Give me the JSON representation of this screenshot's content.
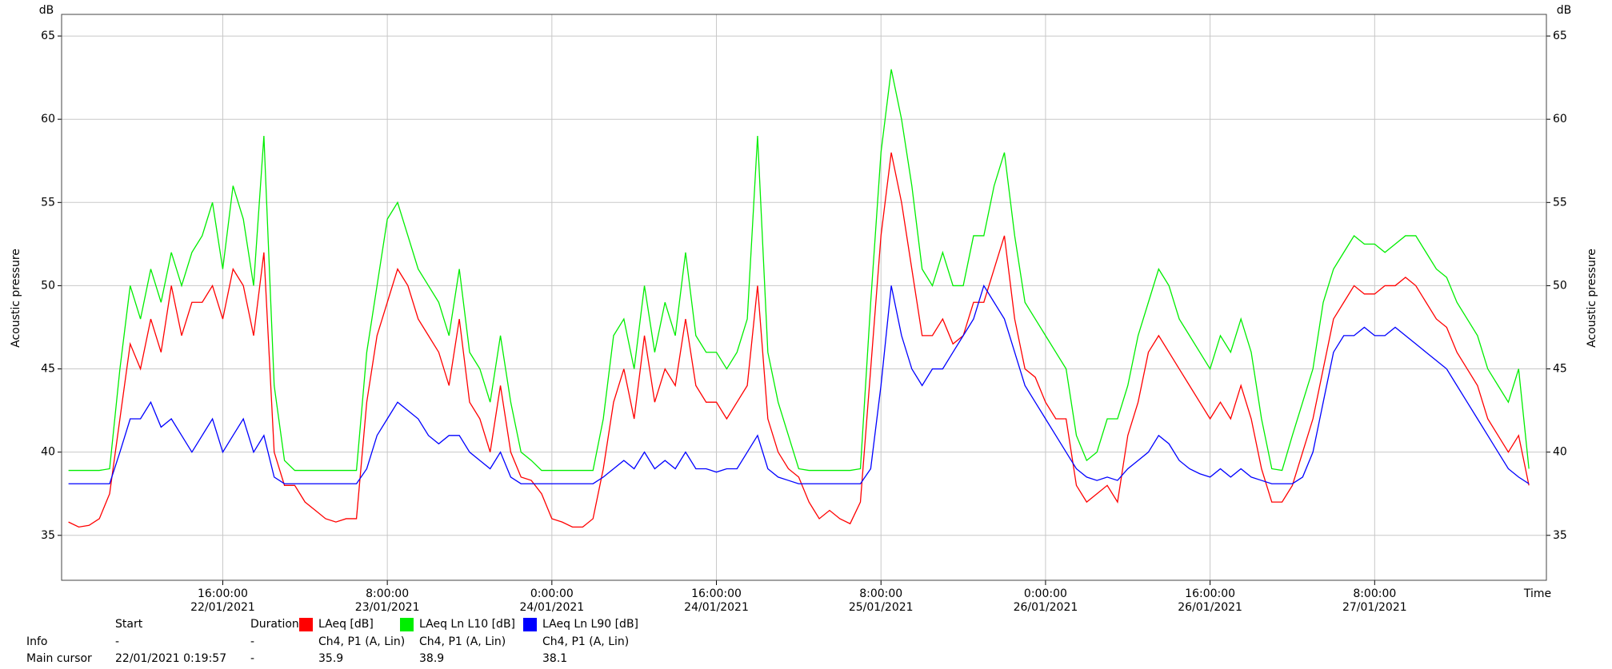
{
  "chart_data": {
    "type": "line",
    "ylabel": "Acoustic pressure",
    "yunit": "dB",
    "xlabel": "Time",
    "x": [
      1,
      2,
      3,
      4,
      5,
      6,
      7,
      8,
      9,
      10,
      11,
      12,
      13,
      14,
      15,
      16,
      17,
      18,
      19,
      20,
      21,
      22,
      23,
      24,
      25,
      26,
      27,
      28,
      29,
      30,
      31,
      32,
      33,
      34,
      35,
      36,
      37,
      38,
      39,
      40,
      41,
      42,
      43,
      44,
      45,
      46,
      47,
      48,
      49,
      50,
      51,
      52,
      53,
      54,
      55,
      56,
      57,
      58,
      59,
      60,
      61,
      62,
      63,
      64,
      65,
      66,
      67,
      68,
      69,
      70,
      71,
      72,
      73,
      74,
      75,
      76,
      77,
      78,
      79,
      80,
      81,
      82,
      83,
      84,
      85,
      86,
      87,
      88,
      89,
      90,
      91,
      92,
      93,
      94,
      95,
      96,
      97,
      98,
      99,
      100,
      101,
      102,
      103,
      104,
      105,
      106,
      107,
      108,
      109,
      110,
      111,
      112,
      113,
      114,
      115,
      116,
      117,
      118,
      119,
      120,
      121,
      122,
      123,
      124,
      125,
      126,
      127,
      128,
      129,
      130,
      131,
      132,
      133,
      134,
      135,
      136,
      137,
      138,
      139,
      140,
      141,
      142,
      143
    ],
    "series": [
      {
        "name": "LAeq [dB]",
        "color": "#ff0000",
        "values": [
          35.8,
          35.5,
          35.6,
          36,
          37.5,
          42,
          46.5,
          45,
          48,
          46,
          50,
          47,
          49,
          49,
          50,
          48,
          51,
          50,
          47,
          52,
          40,
          38,
          38,
          37,
          36.5,
          36,
          35.8,
          36,
          36,
          43,
          47,
          49,
          51,
          50,
          48,
          47,
          46,
          44,
          48,
          43,
          42,
          40,
          44,
          40,
          38.5,
          38.3,
          37.5,
          36,
          35.8,
          35.5,
          35.5,
          36,
          39,
          43,
          45,
          42,
          47,
          43,
          45,
          44,
          48,
          44,
          43,
          43,
          42,
          43,
          44,
          50,
          42,
          40,
          39,
          38.5,
          37,
          36,
          36.5,
          36,
          35.7,
          37,
          45,
          53,
          58,
          55,
          51,
          47,
          47,
          48,
          46.5,
          47,
          49,
          49,
          51,
          53,
          48,
          45,
          44.5,
          43,
          42,
          42,
          38,
          37,
          37.5,
          38,
          37,
          41,
          43,
          46,
          47,
          46,
          45,
          44,
          43,
          42,
          43,
          42,
          44,
          42,
          39,
          37,
          37,
          38,
          40,
          42,
          45,
          48,
          49,
          50,
          49.5,
          49.5,
          50,
          50,
          50.5,
          50,
          49,
          48,
          47.5,
          46,
          45,
          44,
          42,
          41,
          40,
          41,
          38
        ]
      },
      {
        "name": "LAeq Ln L10 [dB]",
        "color": "#00ee00",
        "values": [
          38.9,
          38.9,
          38.9,
          38.9,
          39,
          45,
          50,
          48,
          51,
          49,
          52,
          50,
          52,
          53,
          55,
          51,
          56,
          54,
          50,
          59,
          44,
          39.5,
          38.9,
          38.9,
          38.9,
          38.9,
          38.9,
          38.9,
          38.9,
          46,
          50,
          54,
          55,
          53,
          51,
          50,
          49,
          47,
          51,
          46,
          45,
          43,
          47,
          43,
          40,
          39.5,
          38.9,
          38.9,
          38.9,
          38.9,
          38.9,
          38.9,
          42,
          47,
          48,
          45,
          50,
          46,
          49,
          47,
          52,
          47,
          46,
          46,
          45,
          46,
          48,
          59,
          46,
          43,
          41,
          39,
          38.9,
          38.9,
          38.9,
          38.9,
          38.9,
          39,
          49,
          58,
          63,
          60,
          56,
          51,
          50,
          52,
          50,
          50,
          53,
          53,
          56,
          58,
          53,
          49,
          48,
          47,
          46,
          45,
          41,
          39.5,
          40,
          42,
          42,
          44,
          47,
          49,
          51,
          50,
          48,
          47,
          46,
          45,
          47,
          46,
          48,
          46,
          42,
          39,
          38.9,
          41,
          43,
          45,
          49,
          51,
          52,
          53,
          52.5,
          52.5,
          52,
          52.5,
          53,
          53,
          52,
          51,
          50.5,
          49,
          48,
          47,
          45,
          44,
          43,
          45,
          39
        ]
      },
      {
        "name": "LAeq Ln L90 [dB]",
        "color": "#0000ff",
        "values": [
          38.1,
          38.1,
          38.1,
          38.1,
          38.1,
          40,
          42,
          42,
          43,
          41.5,
          42,
          41,
          40,
          41,
          42,
          40,
          41,
          42,
          40,
          41,
          38.5,
          38.1,
          38.1,
          38.1,
          38.1,
          38.1,
          38.1,
          38.1,
          38.1,
          39,
          41,
          42,
          43,
          42.5,
          42,
          41,
          40.5,
          41,
          41,
          40,
          39.5,
          39,
          40,
          38.5,
          38.1,
          38.1,
          38.1,
          38.1,
          38.1,
          38.1,
          38.1,
          38.1,
          38.5,
          39,
          39.5,
          39,
          40,
          39,
          39.5,
          39,
          40,
          39,
          39,
          38.8,
          39,
          39,
          40,
          41,
          39,
          38.5,
          38.3,
          38.1,
          38.1,
          38.1,
          38.1,
          38.1,
          38.1,
          38.1,
          39,
          44,
          50,
          47,
          45,
          44,
          45,
          45,
          46,
          47,
          48,
          50,
          49,
          48,
          46,
          44,
          43,
          42,
          41,
          40,
          39,
          38.5,
          38.3,
          38.5,
          38.3,
          39,
          39.5,
          40,
          41,
          40.5,
          39.5,
          39,
          38.7,
          38.5,
          39,
          38.5,
          39,
          38.5,
          38.3,
          38.1,
          38.1,
          38.1,
          38.5,
          40,
          43,
          46,
          47,
          47,
          47.5,
          47,
          47,
          47.5,
          47,
          46.5,
          46,
          45.5,
          45,
          44,
          43,
          42,
          41,
          40,
          39,
          38.5,
          38.1
        ]
      }
    ],
    "xlim": [
      0.33,
      144.7
    ],
    "xticks": [
      {
        "value": 16,
        "label": "16:00:00 22/01/2021"
      },
      {
        "value": 32,
        "label": "8:00:00 23/01/2021"
      },
      {
        "value": 48,
        "label": "0:00:00 24/01/2021"
      },
      {
        "value": 64,
        "label": "16:00:00 24/01/2021"
      },
      {
        "value": 80,
        "label": "8:00:00 25/01/2021"
      },
      {
        "value": 96,
        "label": "0:00:00 26/01/2021"
      },
      {
        "value": 112,
        "label": "16:00:00 26/01/2021"
      },
      {
        "value": 128,
        "label": "8:00:00 27/01/2021"
      }
    ],
    "ylim": [
      32.3,
      66.3
    ],
    "yticks": [
      35,
      40,
      45,
      50,
      55,
      60,
      65
    ],
    "y2lim": [
      32.3,
      66.3
    ],
    "y2ticks": [
      35,
      40,
      45,
      50,
      55,
      60,
      65
    ],
    "grid": true
  },
  "info_table": {
    "header": [
      "Start",
      "Duration"
    ],
    "rows": [
      [
        "Info",
        "-",
        "-",
        "Ch4, P1 (A, Lin)",
        "Ch4, P1 (A, Lin)",
        "Ch4, P1 (A, Lin)"
      ],
      [
        "Main cursor",
        "22/01/2021 0:19:57",
        "-",
        "35.9",
        "38.9",
        "38.1"
      ]
    ]
  }
}
